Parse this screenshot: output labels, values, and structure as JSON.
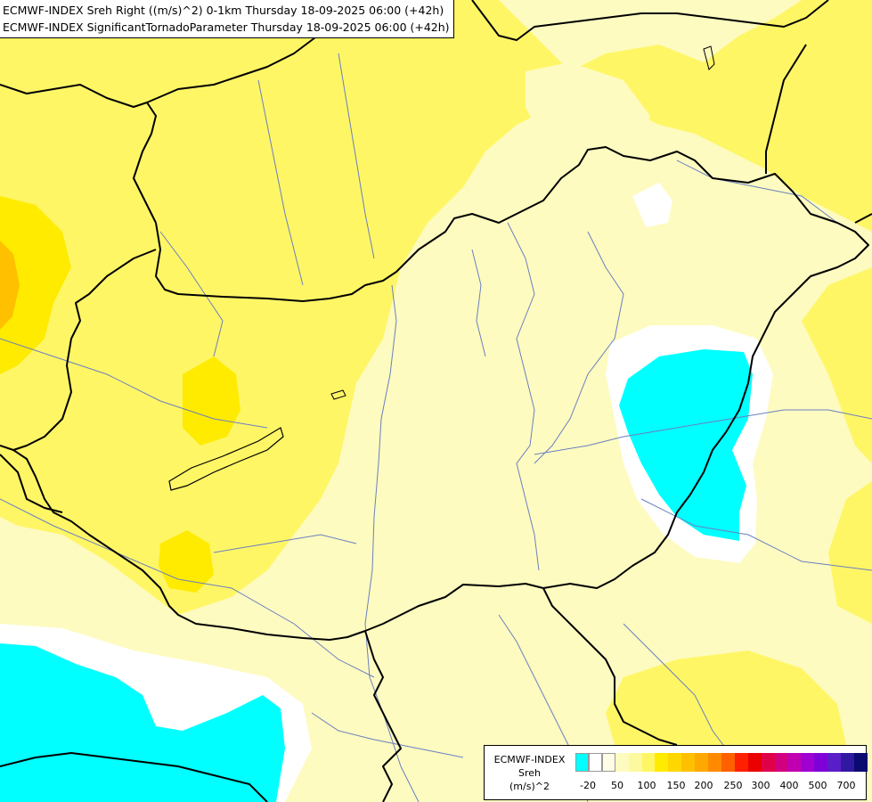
{
  "title": {
    "line1": "ECMWF-INDEX Sreh Right ((m/s)^2) 0-1km Thursday 18-09-2025 06:00 (+42h)",
    "line2": "ECMWF-INDEX SignificantTornadoParameter Thursday 18-09-2025 06:00 (+42h)"
  },
  "legend": {
    "line1": "ECMWF-INDEX",
    "line2": "Sreh",
    "line3": "(m/s)^2",
    "colors": [
      "#00ffff",
      "#ffffff",
      "#fffde6",
      "#fdfbc0",
      "#fdf9a0",
      "#fff666",
      "#ffeb00",
      "#ffd700",
      "#ffc000",
      "#ffa800",
      "#ff8a00",
      "#ff6000",
      "#ff2000",
      "#ea0000",
      "#e0004a",
      "#d20080",
      "#c000b0",
      "#a000d0",
      "#8000d8",
      "#5a1ec8",
      "#3018a0",
      "#0a0a70"
    ],
    "ticks": [
      "-20",
      "50",
      "100",
      "150",
      "200",
      "250",
      "300",
      "400",
      "500",
      "700"
    ]
  },
  "field": {
    "low_color": "#00ffff",
    "zero_color": "#ffffff",
    "base_color": "#fdfbc0",
    "mid_color": "#fff666",
    "high_color": "#ffeb00",
    "peak_color": "#ffc000"
  }
}
